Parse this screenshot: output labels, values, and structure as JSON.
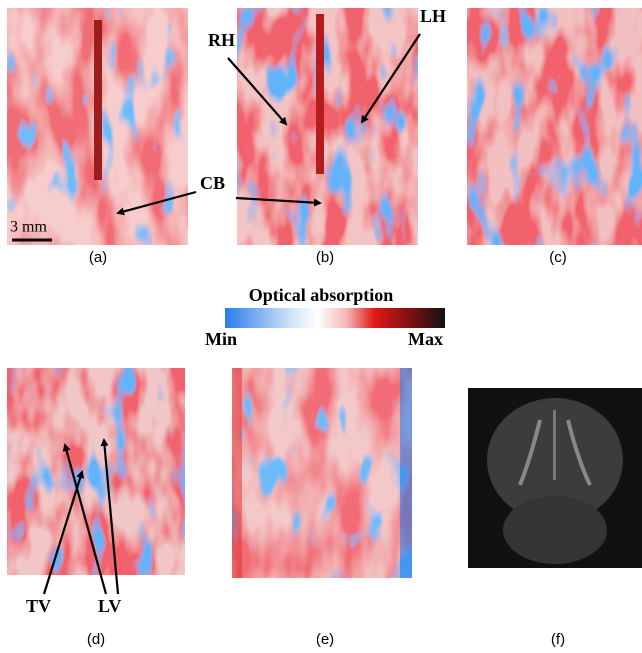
{
  "panels": [
    {
      "label": "(a)"
    },
    {
      "label": "(b)"
    },
    {
      "label": "(c)"
    },
    {
      "label": "(d)"
    },
    {
      "label": "(e)"
    },
    {
      "label": "(f)"
    }
  ],
  "annotations": {
    "rh": "RH",
    "lh": "LH",
    "cb": "CB",
    "tv": "TV",
    "lv": "LV"
  },
  "scale_bar": "3 mm",
  "colorbar": {
    "title": "Optical absorption",
    "min": "Min",
    "max": "Max"
  }
}
